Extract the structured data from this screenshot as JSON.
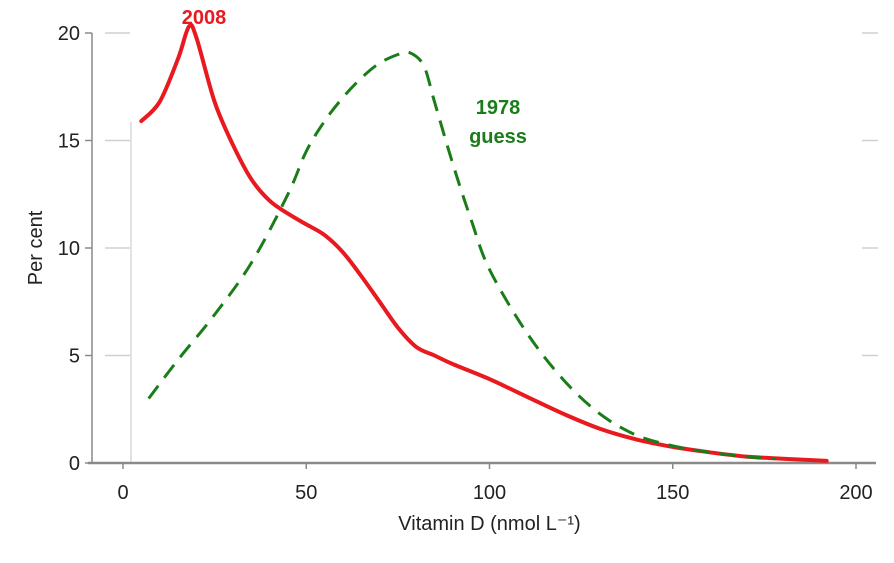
{
  "chart_data": {
    "type": "line",
    "title": "",
    "xlabel": "Vitamin D (nmol L⁻¹)",
    "ylabel": "Per cent",
    "xlim": [
      0,
      200
    ],
    "ylim": [
      0,
      20
    ],
    "xticks": [
      0,
      50,
      100,
      150,
      200
    ],
    "yticks": [
      0,
      5,
      10,
      15,
      20
    ],
    "grid": true,
    "series": [
      {
        "name": "2008",
        "label": "2008",
        "color": "#e8191f",
        "style": "solid",
        "x": [
          5,
          10,
          15,
          18,
          20,
          25,
          30,
          35,
          40,
          45,
          50,
          55,
          60,
          65,
          70,
          75,
          80,
          85,
          90,
          100,
          110,
          120,
          130,
          140,
          150,
          160,
          170,
          180,
          192
        ],
        "y": [
          15.9,
          16.8,
          18.8,
          20.3,
          19.8,
          16.8,
          14.8,
          13.2,
          12.2,
          11.6,
          11.1,
          10.6,
          9.8,
          8.7,
          7.5,
          6.3,
          5.4,
          5.0,
          4.6,
          3.9,
          3.1,
          2.3,
          1.6,
          1.1,
          0.75,
          0.5,
          0.3,
          0.2,
          0.1
        ]
      },
      {
        "name": "1978 guess",
        "label": [
          "1978",
          "guess"
        ],
        "color": "#1a7d1a",
        "style": "dashed",
        "x": [
          7,
          15,
          25,
          35,
          45,
          50,
          55,
          60,
          65,
          70,
          75,
          78,
          82,
          85,
          90,
          95,
          100,
          110,
          120,
          130,
          140,
          150,
          160,
          170,
          178
        ],
        "y": [
          3.0,
          4.8,
          6.9,
          9.3,
          12.5,
          14.5,
          15.9,
          17.0,
          17.9,
          18.6,
          19.0,
          19.1,
          18.5,
          16.8,
          13.9,
          11.3,
          9.0,
          6.1,
          3.9,
          2.3,
          1.3,
          0.8,
          0.5,
          0.3,
          0.2
        ]
      }
    ]
  }
}
